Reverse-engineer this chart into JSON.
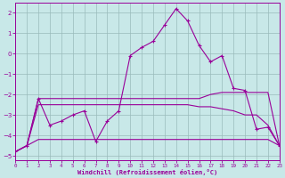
{
  "bg_color": "#c8e8e8",
  "line_color": "#990099",
  "grid_color": "#99bbbb",
  "xlim": [
    0,
    23
  ],
  "ylim": [
    -5.2,
    2.5
  ],
  "xticks": [
    0,
    1,
    2,
    3,
    4,
    5,
    6,
    7,
    8,
    9,
    10,
    11,
    12,
    13,
    14,
    15,
    16,
    17,
    18,
    19,
    20,
    21,
    22,
    23
  ],
  "yticks": [
    -5,
    -4,
    -3,
    -2,
    -1,
    0,
    1,
    2
  ],
  "xlabel": "Windchill (Refroidissement éolien,°C)",
  "curve_main_x": [
    0,
    1,
    2,
    3,
    4,
    5,
    6,
    7,
    8,
    9,
    10,
    11,
    12,
    13,
    14,
    15,
    16,
    17,
    18,
    19,
    20,
    21,
    22,
    23
  ],
  "curve_main_y": [
    -4.8,
    -4.5,
    -2.2,
    -3.5,
    -3.3,
    -3.0,
    -2.8,
    -4.3,
    -3.3,
    -2.8,
    -0.1,
    0.3,
    0.6,
    1.4,
    2.2,
    1.6,
    0.4,
    -0.4,
    -0.1,
    -1.7,
    -1.8,
    -3.7,
    -3.6,
    -4.5
  ],
  "curve2_x": [
    0,
    1,
    2,
    3,
    4,
    5,
    6,
    7,
    8,
    9,
    10,
    11,
    12,
    13,
    14,
    15,
    16,
    17,
    18,
    19,
    20,
    21,
    22,
    23
  ],
  "curve2_y": [
    -4.8,
    -4.5,
    -2.2,
    -2.2,
    -2.2,
    -2.2,
    -2.2,
    -2.2,
    -2.2,
    -2.2,
    -2.2,
    -2.2,
    -2.2,
    -2.2,
    -2.2,
    -2.2,
    -2.2,
    -2.0,
    -1.9,
    -1.9,
    -1.9,
    -1.9,
    -1.9,
    -4.5
  ],
  "curve3_x": [
    0,
    1,
    2,
    3,
    4,
    5,
    6,
    7,
    8,
    9,
    10,
    11,
    12,
    13,
    14,
    15,
    16,
    17,
    18,
    19,
    20,
    21,
    22,
    23
  ],
  "curve3_y": [
    -4.8,
    -4.5,
    -2.5,
    -2.5,
    -2.5,
    -2.5,
    -2.5,
    -2.5,
    -2.5,
    -2.5,
    -2.5,
    -2.5,
    -2.5,
    -2.5,
    -2.5,
    -2.5,
    -2.6,
    -2.6,
    -2.7,
    -2.8,
    -3.0,
    -3.0,
    -3.5,
    -4.5
  ],
  "curve4_x": [
    0,
    1,
    2,
    3,
    4,
    5,
    6,
    7,
    8,
    9,
    10,
    11,
    12,
    13,
    14,
    15,
    16,
    17,
    18,
    19,
    20,
    21,
    22,
    23
  ],
  "curve4_y": [
    -4.8,
    -4.5,
    -4.2,
    -4.2,
    -4.2,
    -4.2,
    -4.2,
    -4.2,
    -4.2,
    -4.2,
    -4.2,
    -4.2,
    -4.2,
    -4.2,
    -4.2,
    -4.2,
    -4.2,
    -4.2,
    -4.2,
    -4.2,
    -4.2,
    -4.2,
    -4.2,
    -4.5
  ]
}
